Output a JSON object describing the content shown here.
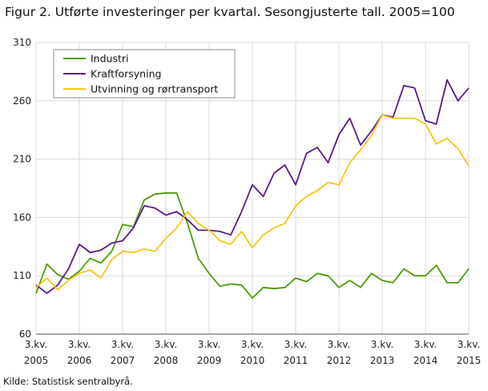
{
  "title": "Figur 2. Utførte investeringer per kvartal. Sesongjusterte tall. 2005=100",
  "source": "Kilde: Statistisk sentralbyrå.",
  "chart_data": {
    "type": "line",
    "title": "Figur 2. Utførte investeringer per kvartal. Sesongjusterte tall. 2005=100",
    "ylim": [
      60,
      310
    ],
    "yticks": [
      60,
      110,
      160,
      210,
      260,
      310
    ],
    "xtick_labels": [
      [
        "3.kv.",
        "2005"
      ],
      [
        "3.kv.",
        "2006"
      ],
      [
        "3.kv.",
        "2007"
      ],
      [
        "3.kv.",
        "2008"
      ],
      [
        "3.kv.",
        "2009"
      ],
      [
        "3.kv.",
        "2010"
      ],
      [
        "3.kv.",
        "2011"
      ],
      [
        "3.kv.",
        "2012"
      ],
      [
        "3.kv.",
        "2013"
      ],
      [
        "3.kv.",
        "2014"
      ],
      [
        "3.kv.",
        "2015"
      ]
    ],
    "x_start": "3.kv. 2005",
    "x_end": "3.kv. 2015",
    "grid": true,
    "legend_position": "top-left",
    "series": [
      {
        "name": "Industri",
        "color": "#4e9a06",
        "values": [
          95,
          120,
          111,
          107,
          114,
          125,
          121,
          131,
          154,
          152,
          175,
          180,
          181,
          181,
          155,
          125,
          112,
          101,
          103,
          102,
          91,
          100,
          99,
          100,
          108,
          105,
          112,
          110,
          100,
          106,
          100,
          112,
          106,
          104,
          116,
          110,
          110,
          119,
          104,
          104,
          116
        ]
      },
      {
        "name": "Kraftforsyning",
        "color": "#5b1a8b",
        "values": [
          102,
          95,
          102,
          116,
          137,
          130,
          132,
          138,
          140,
          151,
          170,
          168,
          162,
          165,
          158,
          149,
          149,
          148,
          145,
          165,
          188,
          178,
          198,
          205,
          188,
          215,
          220,
          207,
          231,
          245,
          222,
          234,
          248,
          246,
          273,
          271,
          243,
          240,
          278,
          260,
          271
        ]
      },
      {
        "name": "Utvinning og rørtransport",
        "color": "#f5c518",
        "values": [
          100,
          108,
          98,
          106,
          112,
          115,
          108,
          124,
          131,
          130,
          133,
          131,
          142,
          151,
          165,
          155,
          149,
          140,
          137,
          148,
          134,
          145,
          151,
          155,
          170,
          178,
          183,
          190,
          188,
          207,
          218,
          230,
          248,
          245,
          245,
          245,
          240,
          223,
          228,
          219,
          204
        ]
      }
    ]
  }
}
